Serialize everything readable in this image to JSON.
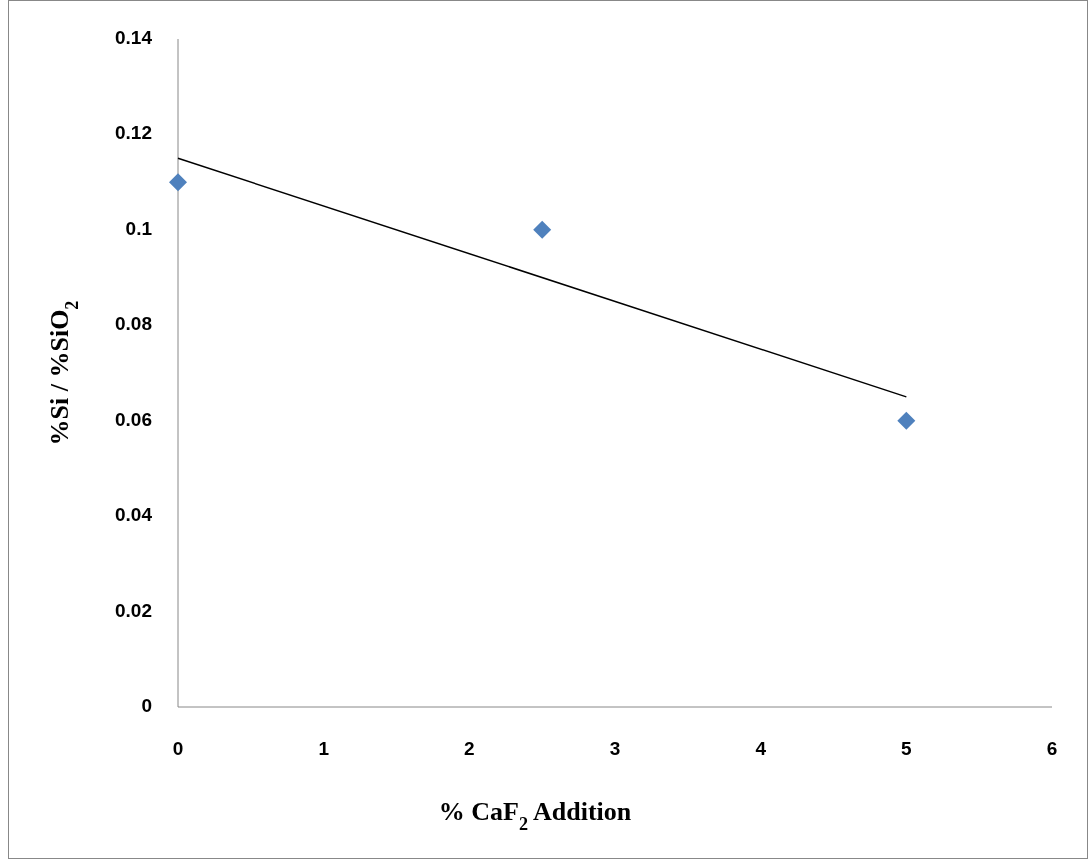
{
  "chart_data": {
    "type": "scatter",
    "xlabel": "% CaF$_{2}$ Addition",
    "ylabel": "%Si / %SiO$_{2}$",
    "xlim": [
      0,
      6
    ],
    "ylim": [
      0,
      0.14
    ],
    "xticks": [
      0,
      1,
      2,
      3,
      4,
      5,
      6
    ],
    "yticks": [
      0,
      0.02,
      0.04,
      0.06,
      0.08,
      0.1,
      0.12,
      0.14
    ],
    "grid": false,
    "series": [
      {
        "type": "scatter",
        "color": "#4f81bd",
        "marker": "diamond",
        "x": [
          0,
          2.5,
          5
        ],
        "values": [
          0.11,
          0.1,
          0.06
        ]
      },
      {
        "type": "line",
        "color": "#000000",
        "marker": "none",
        "x": [
          0,
          5
        ],
        "values": [
          0.115,
          0.065
        ]
      }
    ]
  }
}
